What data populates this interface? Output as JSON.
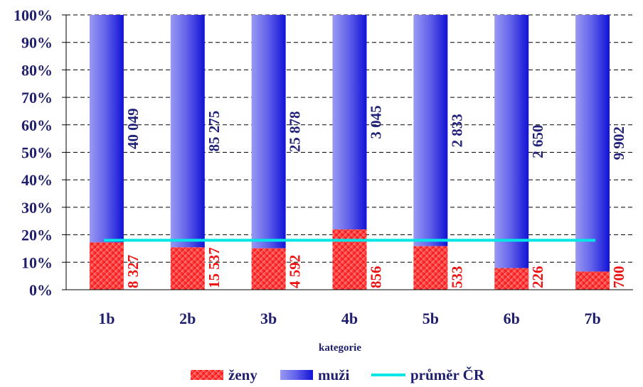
{
  "chart_data": {
    "type": "bar",
    "stacked": true,
    "normalized": true,
    "xlabel": "kategorie",
    "categories": [
      "1b",
      "2b",
      "3b",
      "4b",
      "5b",
      "6b",
      "7b"
    ],
    "series": [
      {
        "name": "ženy",
        "values": [
          8327,
          15537,
          4592,
          856,
          533,
          226,
          700
        ],
        "labels": [
          "8 327",
          "15 537",
          "4 592",
          "856",
          "533",
          "226",
          "700"
        ],
        "color": "#f01010"
      },
      {
        "name": "muži",
        "values": [
          40049,
          85275,
          25878,
          3045,
          2833,
          2650,
          9902
        ],
        "labels": [
          "40 049",
          "85 275",
          "25 878",
          "3 045",
          "2 833",
          "2 650",
          "9 902"
        ],
        "color": "#2525e0"
      }
    ],
    "average_line": {
      "name": "průměr ČR",
      "value": 18,
      "color": "#00e5e5"
    },
    "yticks": [
      "0%",
      "10%",
      "20%",
      "30%",
      "40%",
      "50%",
      "60%",
      "70%",
      "80%",
      "90%",
      "100%"
    ],
    "ylim": [
      0,
      100
    ],
    "grid": "dashed horizontal",
    "legend": "bottom"
  }
}
